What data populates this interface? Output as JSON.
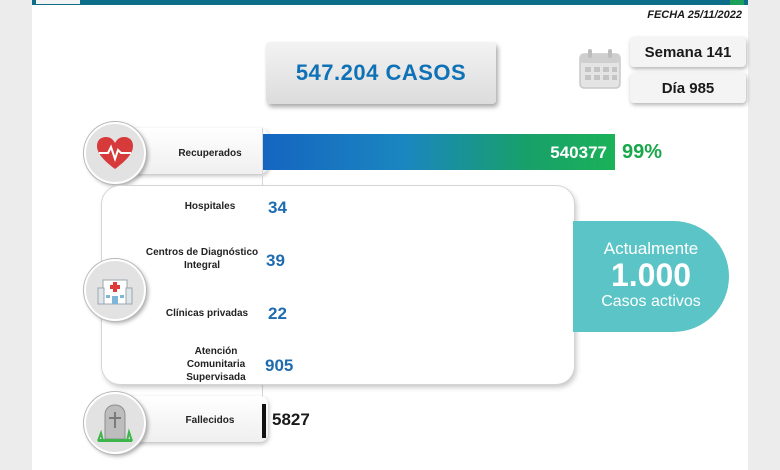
{
  "header": {
    "date": "FECHA 25/11/2022"
  },
  "total": {
    "label": "547.204 CASOS"
  },
  "calendar": {
    "week": "Semana 141",
    "day": "Día 985"
  },
  "recovered": {
    "label": "Recuperados",
    "value": "540377",
    "percent": "99%",
    "fraction": 0.99
  },
  "facilities": [
    {
      "label": "Hospitales",
      "value": "34"
    },
    {
      "label": "Centros de Diagnóstico Integral",
      "value": "39"
    },
    {
      "label": "Clínicas privadas",
      "value": "22"
    },
    {
      "label": "Atención Comunitaria Supervisada",
      "value": "905"
    }
  ],
  "active": {
    "title": "Actualmente",
    "count": "1.000",
    "caption": "Casos activos"
  },
  "deaths": {
    "label": "Fallecidos",
    "value": "5827"
  },
  "colors": {
    "primary_blue": "#0f72b6",
    "green": "#1aa64a",
    "teal": "#5bc4c6",
    "heart_red": "#d63a3a"
  },
  "icons": [
    "heart-pulse-icon",
    "hospital-icon",
    "gravestone-icon",
    "calendar-icon"
  ]
}
